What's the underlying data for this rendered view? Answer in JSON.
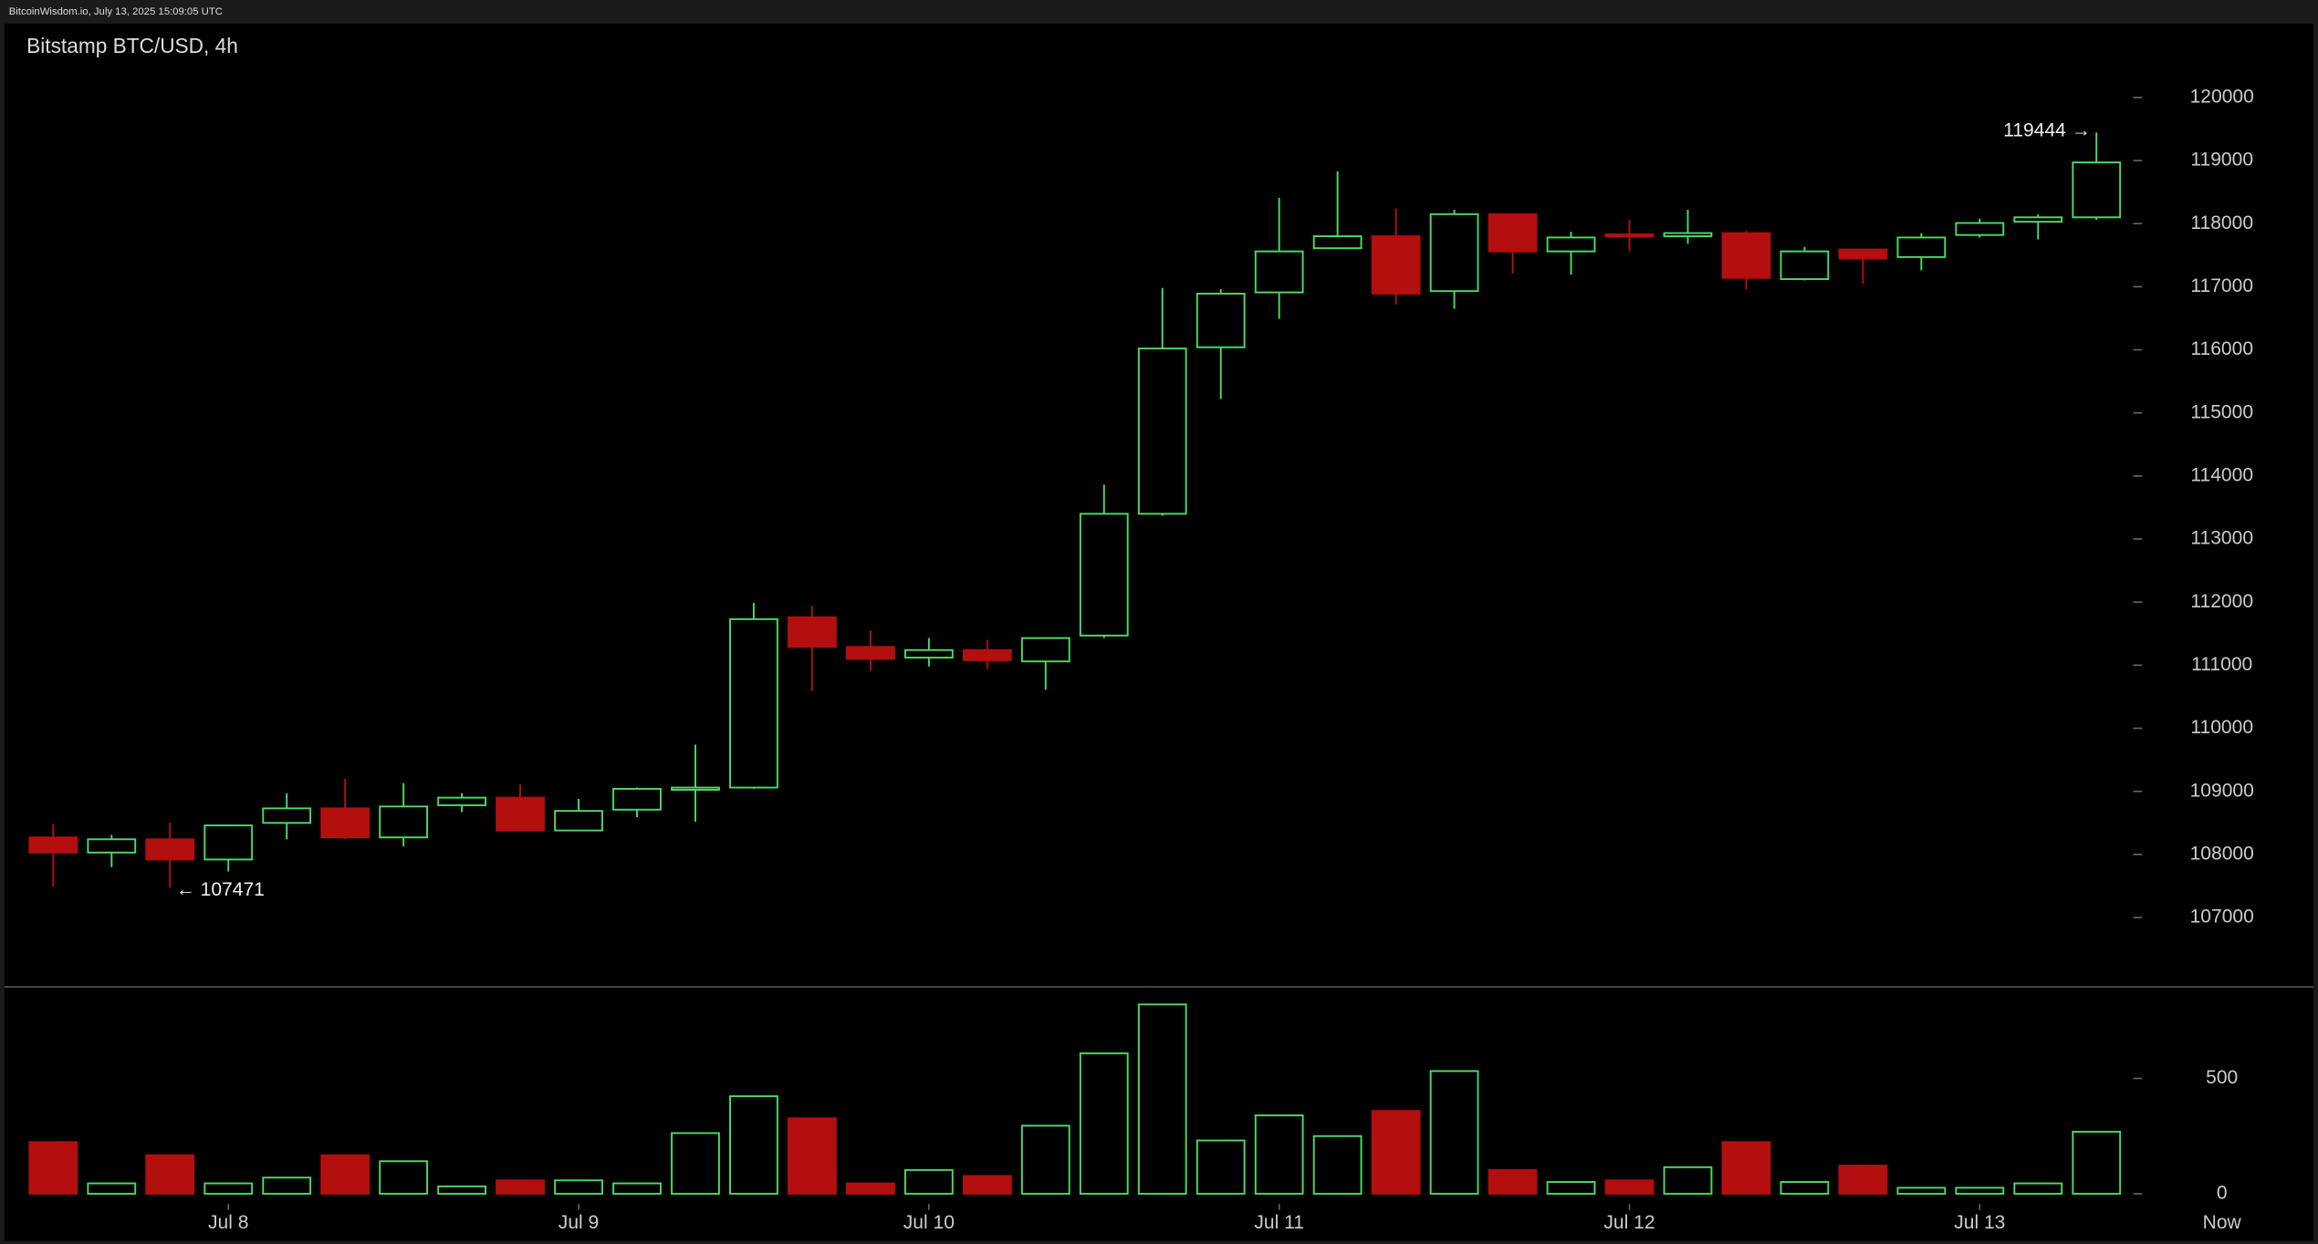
{
  "source": "BitcoinWisdom.io, July 13, 2025 15:09:05 UTC",
  "chart_data": [
    {
      "type": "candlestick",
      "title": "Bitstamp BTC/USD, 4h",
      "open": [
        108270,
        108030,
        108240,
        107920,
        108500,
        108730,
        108270,
        108780,
        108900,
        108380,
        108710,
        109040,
        109060,
        111760,
        111290,
        111120,
        111240,
        111060,
        111470,
        113400,
        116040,
        116910,
        117610,
        117800,
        116930,
        118150,
        117560,
        117830,
        117800,
        117850,
        117120,
        117590,
        117470,
        117820,
        118030,
        118100
      ],
      "high": [
        108480,
        108310,
        108500,
        108460,
        108970,
        109200,
        109130,
        108970,
        109110,
        108880,
        109060,
        109740,
        111990,
        111940,
        111550,
        111430,
        111400,
        111430,
        113860,
        116980,
        116960,
        118410,
        118830,
        118240,
        118220,
        118150,
        117870,
        118060,
        118220,
        117890,
        117630,
        117590,
        117850,
        118080,
        118150,
        119444
      ],
      "low": [
        107490,
        107800,
        107471,
        107730,
        108240,
        108240,
        108130,
        108670,
        108380,
        108380,
        108590,
        108520,
        109040,
        110590,
        110910,
        110980,
        110940,
        110610,
        111430,
        113370,
        115220,
        116490,
        117610,
        116720,
        116650,
        117210,
        117190,
        117560,
        117680,
        116960,
        117100,
        117050,
        117260,
        117780,
        117750,
        118060
      ],
      "close": [
        108030,
        108240,
        107920,
        108460,
        108730,
        108270,
        108760,
        108900,
        108380,
        108690,
        109040,
        109060,
        111730,
        111290,
        111100,
        111240,
        111080,
        111430,
        113400,
        116020,
        116890,
        117560,
        117800,
        116890,
        118150,
        117560,
        117780,
        117800,
        117850,
        117140,
        117560,
        117450,
        117780,
        118010,
        118100,
        118970
      ],
      "up_color": "#4cd964",
      "down_color": "#b30f0f",
      "ylim": [
        105900,
        121170
      ],
      "yticks": [
        107000,
        108000,
        109000,
        110000,
        111000,
        112000,
        113000,
        114000,
        115000,
        116000,
        117000,
        118000,
        119000,
        120000
      ],
      "annotations": [
        {
          "text": "119444 →"
        },
        {
          "text": "← 107471"
        }
      ]
    },
    {
      "type": "bar",
      "categories": [
        null,
        null,
        null,
        "Jul 8",
        null,
        null,
        null,
        null,
        null,
        "Jul 9",
        null,
        null,
        null,
        null,
        null,
        "Jul 10",
        null,
        null,
        null,
        null,
        null,
        "Jul 11",
        null,
        null,
        null,
        null,
        null,
        "Jul 12",
        null,
        null,
        null,
        null,
        null,
        "Jul 13",
        null,
        null
      ],
      "x_end_label": "Now",
      "values": [
        224,
        45,
        167,
        45,
        70,
        167,
        141,
        32,
        58,
        58,
        45,
        263,
        423,
        327,
        45,
        103,
        77,
        295,
        609,
        821,
        231,
        340,
        250,
        359,
        532,
        103,
        51,
        58,
        115,
        224,
        51,
        122,
        26,
        26,
        45,
        269
      ],
      "ylim": [
        0,
        897
      ],
      "yticks": [
        0,
        500
      ]
    }
  ]
}
